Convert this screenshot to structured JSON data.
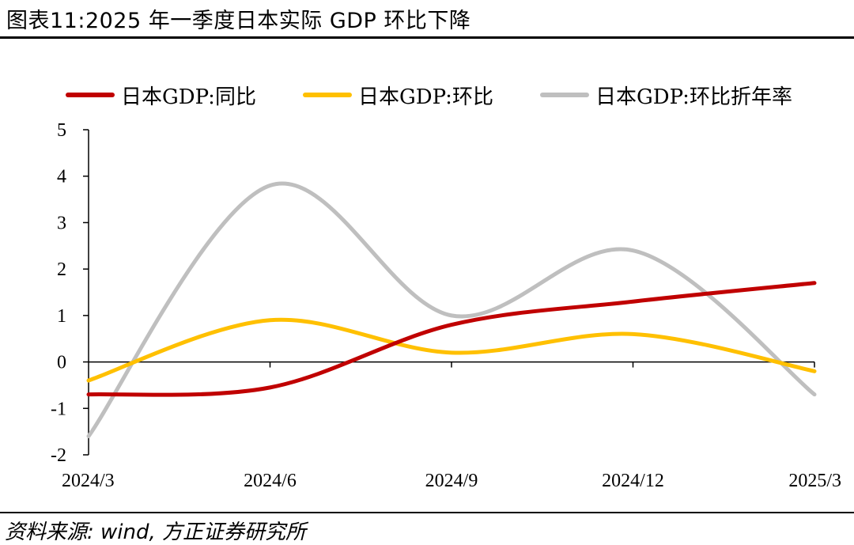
{
  "header": {
    "title": "图表11:2025 年一季度日本实际 GDP 环比下降"
  },
  "footer": {
    "source": "资料来源: wind, 方正证券研究所"
  },
  "chart_data": {
    "type": "line",
    "categories": [
      "2024/3",
      "2024/6",
      "2024/9",
      "2024/12",
      "2025/3"
    ],
    "ylim": [
      -2,
      5
    ],
    "yticks": [
      "5",
      "4",
      "3",
      "2",
      "1",
      "0",
      "-1",
      "-2"
    ],
    "grid": false,
    "legend_position": "top",
    "series": [
      {
        "name": "日本GDP:同比",
        "color": "#C00000",
        "values": [
          -0.7,
          -0.55,
          0.8,
          1.3,
          1.7
        ]
      },
      {
        "name": "日本GDP:环比",
        "color": "#FFC000",
        "values": [
          -0.4,
          0.9,
          0.2,
          0.6,
          -0.2
        ]
      },
      {
        "name": "日本GDP:环比折年率",
        "color": "#BFBFBF",
        "values": [
          -1.6,
          3.8,
          1.0,
          2.4,
          -0.7
        ]
      }
    ]
  }
}
